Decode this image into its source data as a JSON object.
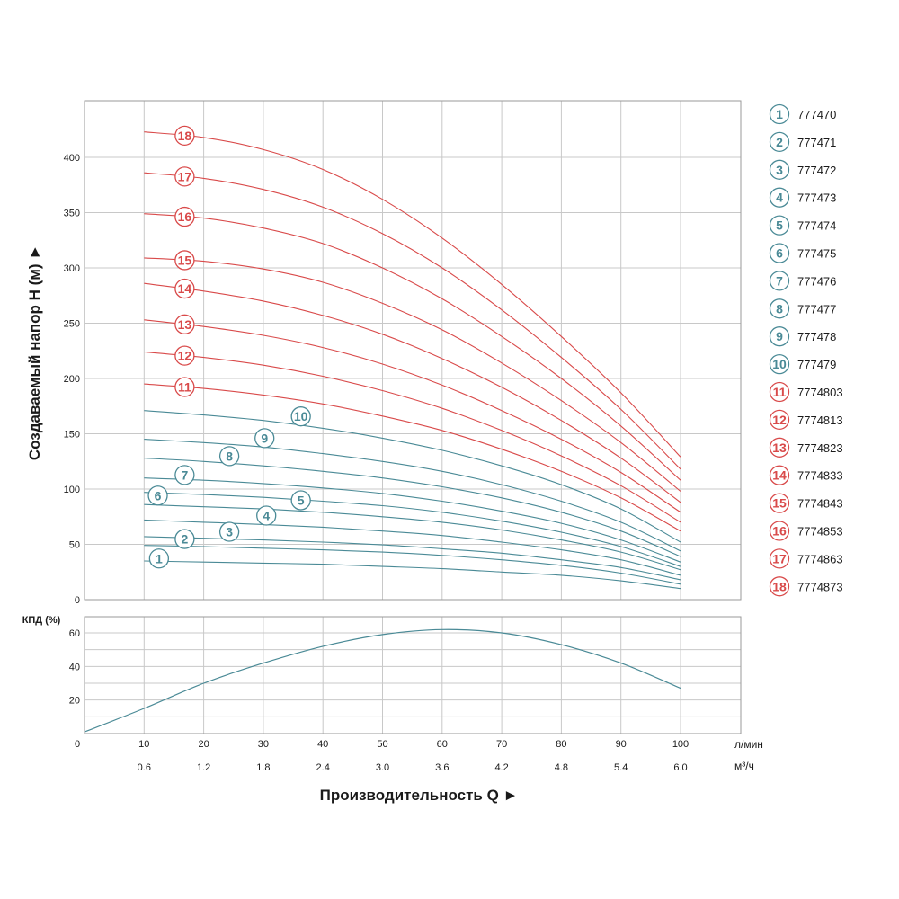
{
  "chart_data": [
    {
      "type": "line",
      "title": "",
      "ylabel": "Создаваемый напор Н (м) ►",
      "xlabel": "",
      "xlim": [
        0,
        100
      ],
      "ylim": [
        0,
        450
      ],
      "grid": true,
      "yticks": [
        0,
        50,
        100,
        150,
        200,
        250,
        300,
        350,
        400
      ],
      "x": [
        10,
        20,
        30,
        40,
        50,
        60,
        70,
        80,
        90,
        100
      ],
      "series": [
        {
          "marker": "1",
          "name": "777470",
          "color": "#4a8a96",
          "values": [
            35,
            34,
            33,
            32,
            30,
            28,
            25,
            22,
            17,
            10
          ]
        },
        {
          "marker": "2",
          "name": "777471",
          "color": "#4a8a96",
          "values": [
            49,
            48,
            46.5,
            45,
            43,
            40,
            36,
            31,
            24,
            14
          ]
        },
        {
          "marker": "3",
          "name": "777472",
          "color": "#4a8a96",
          "values": [
            57,
            55.5,
            54,
            52,
            49.5,
            46,
            42,
            36,
            29,
            18
          ]
        },
        {
          "marker": "4",
          "name": "777473",
          "color": "#4a8a96",
          "values": [
            72,
            70,
            68,
            65.5,
            62,
            58,
            52,
            45,
            36,
            22
          ]
        },
        {
          "marker": "5",
          "name": "777474",
          "color": "#4a8a96",
          "values": [
            86,
            84,
            82,
            79,
            75,
            70,
            63,
            54,
            43,
            27
          ]
        },
        {
          "marker": "6",
          "name": "777475",
          "color": "#4a8a96",
          "values": [
            97,
            95,
            92.5,
            89,
            85,
            79,
            71,
            61,
            48,
            30
          ]
        },
        {
          "marker": "7",
          "name": "777476",
          "color": "#4a8a96",
          "values": [
            110,
            108,
            105,
            101,
            96,
            89,
            80,
            69,
            54,
            34
          ]
        },
        {
          "marker": "8",
          "name": "777477",
          "color": "#4a8a96",
          "values": [
            128,
            125,
            121,
            116,
            110,
            102,
            92,
            79,
            62,
            39
          ]
        },
        {
          "marker": "9",
          "name": "777478",
          "color": "#4a8a96",
          "values": [
            145,
            142,
            138,
            132,
            125,
            116,
            104,
            89,
            70,
            44
          ]
        },
        {
          "marker": "10",
          "name": "777479",
          "color": "#4a8a96",
          "values": [
            171,
            167,
            162,
            155,
            146,
            135,
            121,
            104,
            82,
            52
          ]
        },
        {
          "marker": "11",
          "name": "7774803",
          "color": "#d94a4a",
          "values": [
            195,
            191,
            185,
            177,
            166,
            153,
            136,
            116,
            92,
            62
          ]
        },
        {
          "marker": "12",
          "name": "7774813",
          "color": "#d94a4a",
          "values": [
            224,
            219,
            212,
            202,
            189,
            173,
            153,
            130,
            103,
            70
          ]
        },
        {
          "marker": "13",
          "name": "7774823",
          "color": "#d94a4a",
          "values": [
            253,
            247,
            239,
            228,
            213,
            194,
            171,
            145,
            115,
            79
          ]
        },
        {
          "marker": "14",
          "name": "7774833",
          "color": "#d94a4a",
          "values": [
            286,
            279,
            270,
            257,
            240,
            218,
            192,
            162,
            128,
            88
          ]
        },
        {
          "marker": "15",
          "name": "7774843",
          "color": "#d94a4a",
          "values": [
            309,
            306,
            299,
            287,
            268,
            244,
            214,
            180,
            142,
            98
          ]
        },
        {
          "marker": "16",
          "name": "7774853",
          "color": "#d94a4a",
          "values": [
            349,
            345,
            336,
            322,
            300,
            272,
            238,
            200,
            157,
            108
          ]
        },
        {
          "marker": "17",
          "name": "7774863",
          "color": "#d94a4a",
          "values": [
            386,
            381,
            371,
            355,
            331,
            300,
            262,
            219,
            172,
            118
          ]
        },
        {
          "marker": "18",
          "name": "7774873",
          "color": "#d94a4a",
          "values": [
            423,
            418,
            407,
            389,
            362,
            327,
            285,
            238,
            187,
            129
          ]
        }
      ]
    },
    {
      "type": "line",
      "title": "",
      "ylabel": "КПД (%)",
      "xlabel": "Производительность Q ►",
      "xlim": [
        0,
        100
      ],
      "ylim": [
        0,
        70
      ],
      "yticks": [
        20,
        40,
        60
      ],
      "xticks_primary": [
        0,
        10,
        20,
        30,
        40,
        50,
        60,
        70,
        80,
        90,
        100
      ],
      "xunit_primary": "л/мин",
      "xticks_secondary": [
        "0.6",
        "1.2",
        "1.8",
        "2.4",
        "3.0",
        "3.6",
        "4.2",
        "4.8",
        "5.4",
        "6.0"
      ],
      "xunit_secondary": "м³/ч",
      "grid": true,
      "series": [
        {
          "color": "#4a8a96",
          "x": [
            0,
            10,
            20,
            30,
            40,
            50,
            60,
            70,
            80,
            90,
            100
          ],
          "values": [
            1,
            15,
            30,
            42,
            52,
            59,
            62,
            60,
            53,
            42,
            27
          ]
        }
      ]
    }
  ],
  "colors": {
    "teal": "#4a8a96",
    "red": "#d94a4a",
    "grid": "#c8c8c8",
    "frame": "#999999",
    "text": "#1a1a1a"
  }
}
